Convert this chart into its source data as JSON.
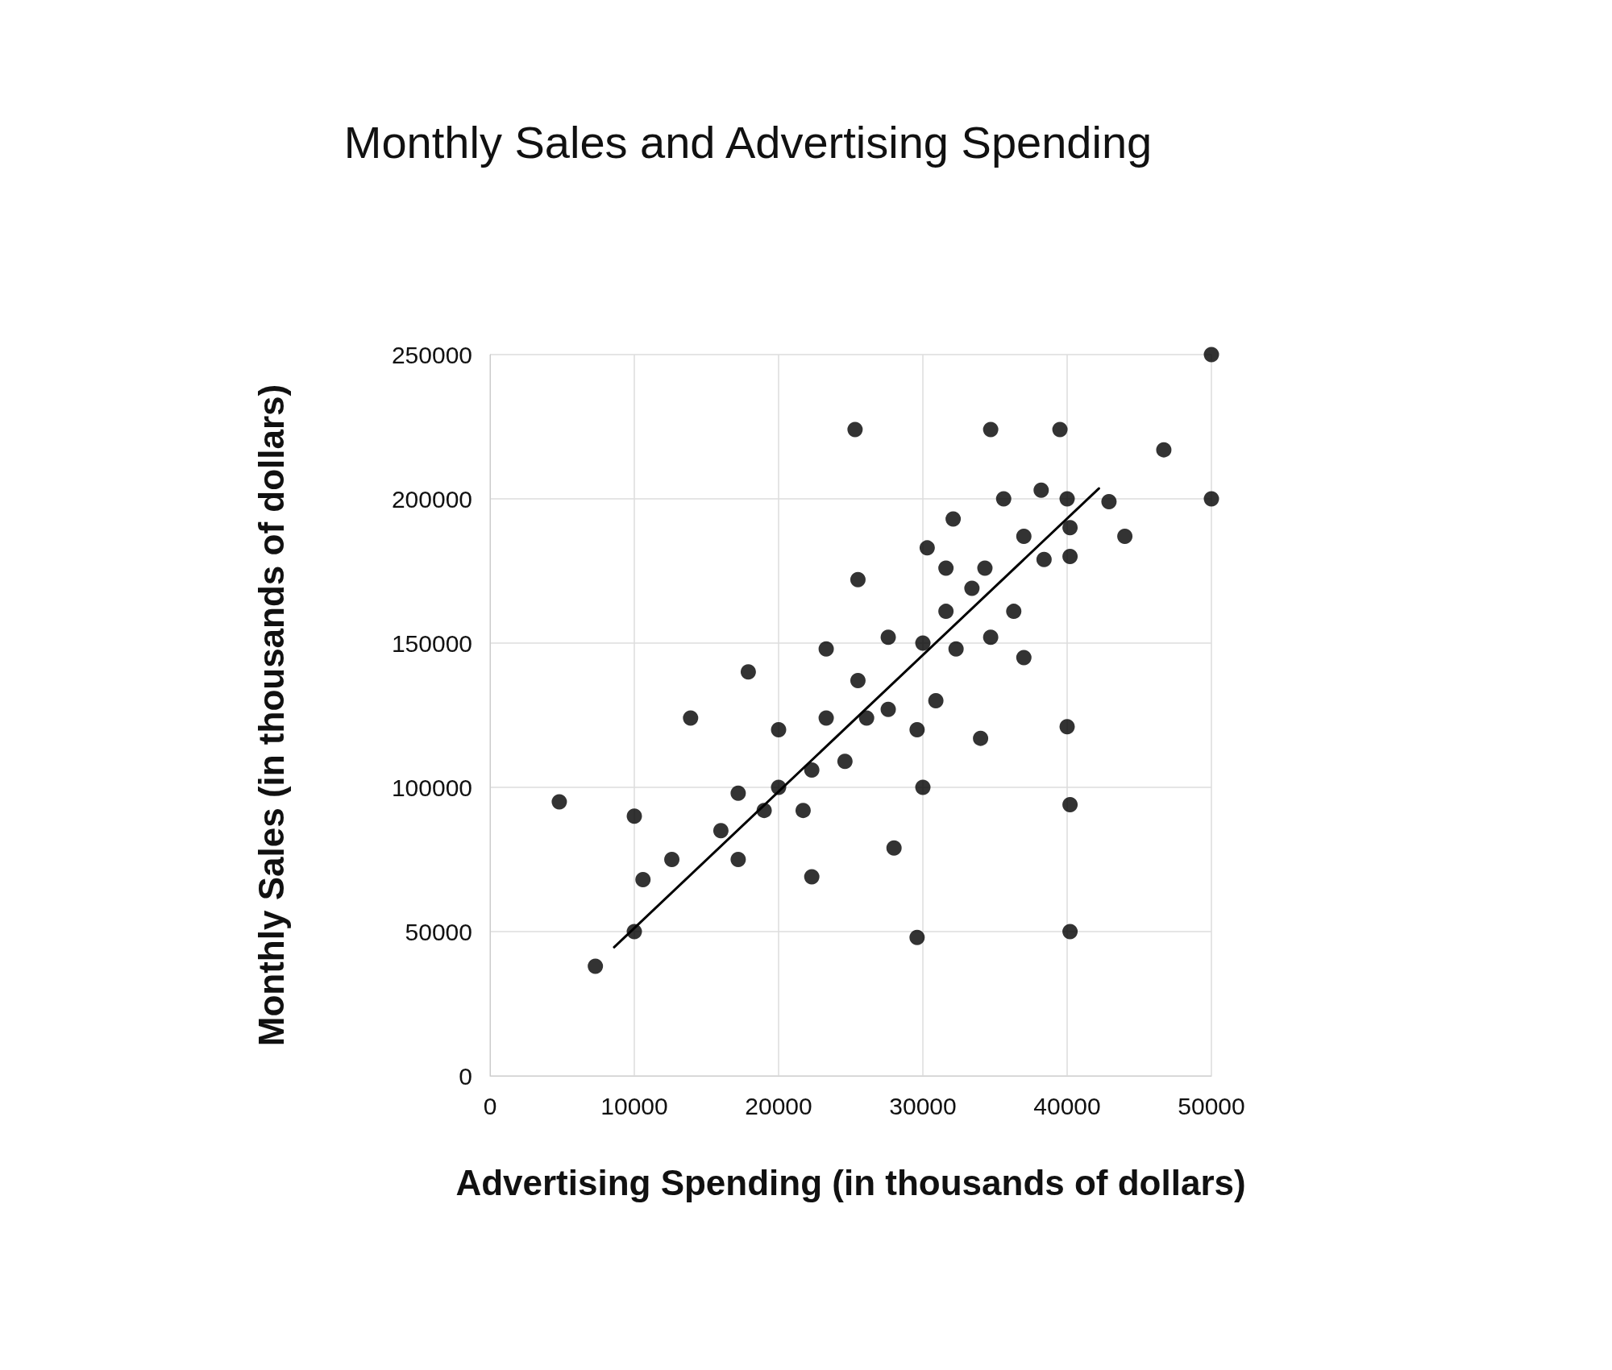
{
  "chart_data": {
    "type": "scatter",
    "title": "Monthly Sales and Advertising Spending",
    "xlabel": "Advertising Spending (in thousands of dollars)",
    "ylabel": "Monthly Sales (in thousands of dollars)",
    "xlim": [
      0,
      50000
    ],
    "xticks": [
      0,
      10000,
      20000,
      30000,
      40000,
      50000
    ],
    "ylim": [
      0,
      250000
    ],
    "yticks": [
      0,
      50000,
      100000,
      150000,
      200000,
      250000
    ],
    "grid": true,
    "line_style": "solid",
    "series": [
      {
        "marker": "circle",
        "color": "#000000",
        "x": [
          4800,
          7300,
          10000,
          10000,
          10600,
          12600,
          13900,
          16000,
          17200,
          17200,
          17900,
          19000,
          20000,
          20000,
          21700,
          22300,
          22300,
          23300,
          23300,
          24600,
          25300,
          25500,
          25500,
          26100,
          27600,
          27600,
          28000,
          29600,
          29600,
          30000,
          30000,
          30300,
          30900,
          31600,
          31600,
          32100,
          32300,
          33400,
          34000,
          34300,
          34700,
          34700,
          35600,
          36300,
          37000,
          37000,
          38200,
          38400,
          39500,
          40000,
          40000,
          40200,
          40200,
          40200,
          40200,
          42900,
          44000,
          46700,
          50000,
          50000
        ],
        "values": [
          95000,
          38000,
          90000,
          50000,
          68000,
          75000,
          124000,
          85000,
          98000,
          75000,
          140000,
          92000,
          120000,
          100000,
          92000,
          106000,
          69000,
          148000,
          124000,
          109000,
          224000,
          172000,
          137000,
          124000,
          152000,
          127000,
          79000,
          120000,
          48000,
          150000,
          100000,
          183000,
          130000,
          176000,
          161000,
          193000,
          148000,
          169000,
          117000,
          176000,
          224000,
          152000,
          200000,
          161000,
          187000,
          145000,
          203000,
          179000,
          224000,
          200000,
          121000,
          190000,
          180000,
          94000,
          50000,
          199000,
          187000,
          217000,
          250000,
          200000
        ]
      },
      {
        "type": "line",
        "marker": "none",
        "color": "#000000",
        "x": [
          8600,
          42200
        ],
        "values": [
          44600,
          203600
        ]
      }
    ]
  }
}
